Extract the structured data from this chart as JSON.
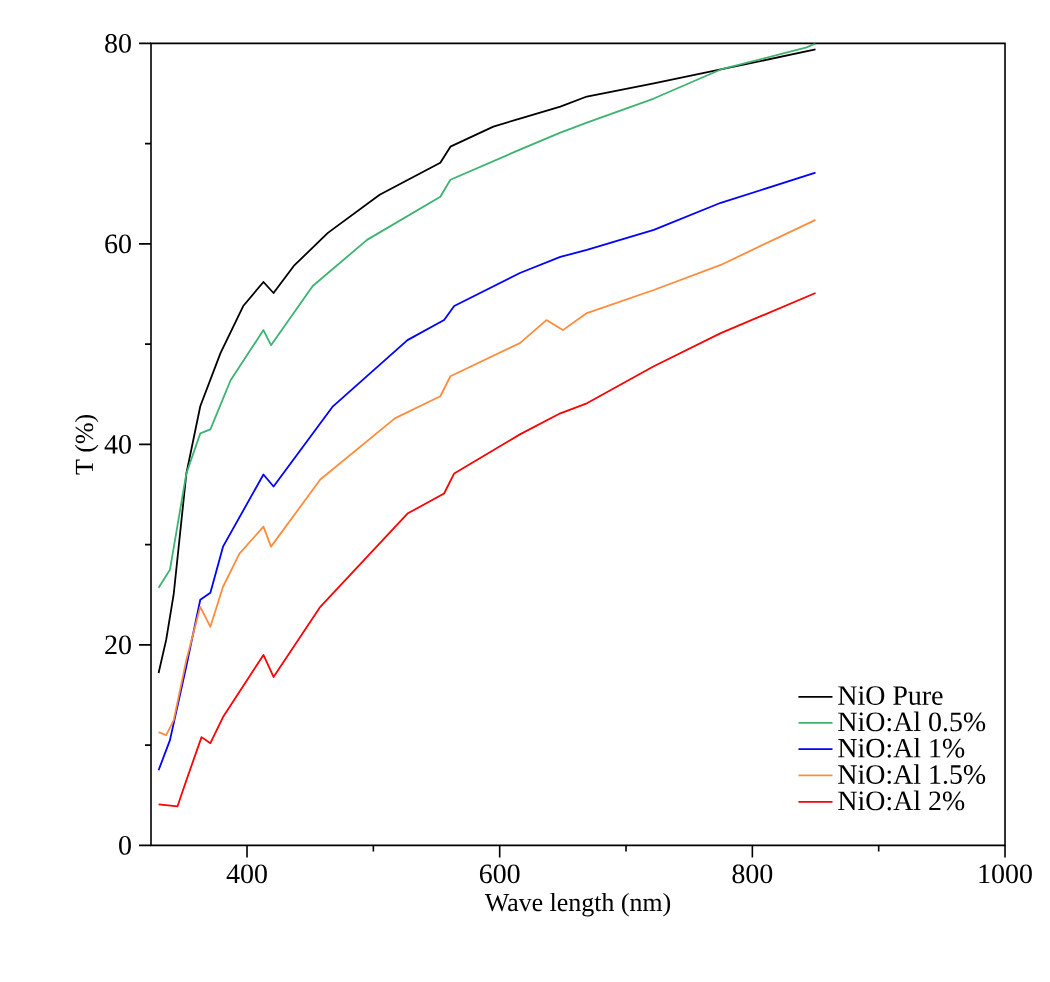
{
  "chart_data": {
    "type": "line",
    "xlabel": "Wave length (nm)",
    "ylabel": "T (%)",
    "xlim": [
      324,
      1000
    ],
    "ylim": [
      0,
      80
    ],
    "xticks": [
      400,
      {
        "value": 500,
        "label": null
      },
      600,
      {
        "value": 700,
        "label": null
      },
      800,
      {
        "value": 900,
        "label": null
      },
      1000
    ],
    "yticks": [
      0,
      {
        "value": 10,
        "label": null
      },
      20,
      {
        "value": 30,
        "label": null
      },
      40,
      {
        "value": 50,
        "label": null
      },
      60,
      {
        "value": 70,
        "label": null
      },
      80
    ],
    "grid": false,
    "legend": "bottom right",
    "marker": "none",
    "line_style": "solid",
    "series": [
      {
        "name": "NiO Pure",
        "color": "#000000",
        "x": [
          330,
          336,
          342,
          352,
          363,
          379,
          397,
          413,
          421,
          437,
          464,
          505,
          553,
          561,
          595,
          616,
          648,
          669,
          722,
          775,
          850
        ],
        "values": [
          17.2,
          20.5,
          25.1,
          37.1,
          43.8,
          49.1,
          53.8,
          56.2,
          55.1,
          57.8,
          61.1,
          64.9,
          68.1,
          69.7,
          71.7,
          72.5,
          73.7,
          74.7,
          76.0,
          77.4,
          79.4
        ]
      },
      {
        "name": "NiO:Al 0.5%",
        "color": "#3cb371",
        "x": [
          330,
          339,
          352,
          363,
          371,
          387,
          413,
          419,
          452,
          495,
          553,
          561,
          616,
          648,
          669,
          722,
          775,
          843,
          850
        ],
        "values": [
          25.7,
          27.5,
          37.1,
          41.1,
          41.5,
          46.4,
          51.4,
          49.9,
          55.8,
          60.4,
          64.7,
          66.4,
          69.4,
          71.1,
          72.1,
          74.5,
          77.4,
          79.6,
          80.0
        ]
      },
      {
        "name": "NiO:Al 1%",
        "color": "#0000ff",
        "x": [
          330,
          339,
          352,
          363,
          371,
          381,
          413,
          421,
          468,
          527,
          556,
          564,
          616,
          648,
          669,
          722,
          775,
          850
        ],
        "values": [
          7.5,
          10.5,
          17.9,
          24.5,
          25.2,
          29.8,
          37.0,
          35.8,
          43.8,
          50.4,
          52.4,
          53.8,
          57.1,
          58.7,
          59.4,
          61.4,
          64.1,
          67.1
        ]
      },
      {
        "name": "NiO:Al 1.5%",
        "color": "#ff8c3c",
        "x": [
          330,
          336,
          342,
          352,
          363,
          371,
          381,
          394,
          413,
          419,
          458,
          517,
          553,
          561,
          616,
          637,
          650,
          669,
          722,
          775,
          850
        ],
        "values": [
          11.3,
          11.0,
          12.5,
          18.5,
          23.8,
          21.8,
          25.8,
          29.1,
          31.8,
          29.8,
          36.5,
          42.6,
          44.8,
          46.8,
          50.1,
          52.4,
          51.4,
          53.1,
          55.4,
          57.9,
          62.4
        ]
      },
      {
        "name": "NiO:Al 2%",
        "color": "#ff0000",
        "x": [
          330,
          345,
          352,
          364,
          371,
          381,
          413,
          421,
          458,
          527,
          556,
          564,
          616,
          648,
          669,
          722,
          775,
          850
        ],
        "values": [
          4.1,
          3.9,
          6.5,
          10.8,
          10.2,
          12.8,
          19.0,
          16.8,
          23.8,
          33.1,
          35.1,
          37.1,
          41.0,
          43.1,
          44.1,
          47.8,
          51.1,
          55.1
        ]
      }
    ]
  }
}
